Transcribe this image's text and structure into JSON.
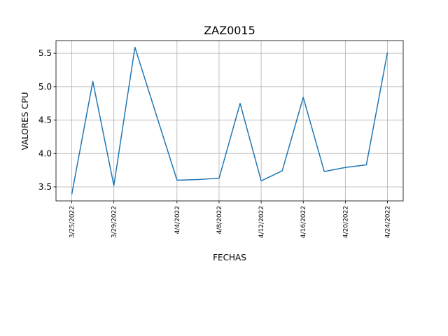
{
  "chart_data": {
    "type": "line",
    "title": "ZAZ0015",
    "xlabel": "FECHAS",
    "ylabel": "VALORES CPU",
    "x": [
      "3/25/2022",
      "3/27/2022",
      "3/29/2022",
      "3/31/2022",
      "4/4/2022",
      "4/6/2022",
      "4/8/2022",
      "4/10/2022",
      "4/12/2022",
      "4/14/2022",
      "4/16/2022",
      "4/18/2022",
      "4/20/2022",
      "4/22/2022",
      "4/24/2022"
    ],
    "series": [
      {
        "values": [
          3.39,
          5.08,
          3.52,
          5.59,
          3.6,
          3.61,
          3.63,
          4.75,
          3.59,
          3.74,
          4.84,
          3.73,
          3.79,
          3.83,
          5.51
        ]
      }
    ],
    "xtick_labels": [
      "3/25/2022",
      "3/29/2022",
      "4/4/2022",
      "4/8/2022",
      "4/12/2022",
      "4/16/2022",
      "4/20/2022",
      "4/24/2022"
    ],
    "yticks": [
      "3.5",
      "4.0",
      "4.5",
      "5.0",
      "5.5"
    ],
    "ylim": [
      3.29,
      5.69
    ],
    "grid": true,
    "colors": {
      "line": "#1f77b4"
    }
  }
}
